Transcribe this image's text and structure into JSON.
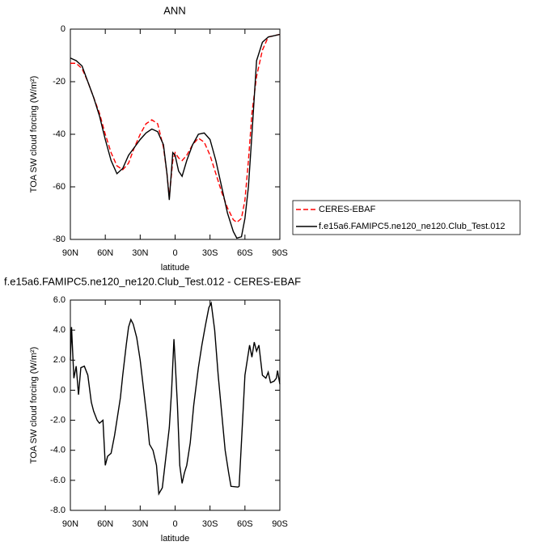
{
  "chart_data": [
    {
      "type": "line",
      "title": "ANN",
      "xlabel": "latitude",
      "ylabel": "TOA SW cloud forcing (W/m²)",
      "x": [
        90,
        85,
        80,
        75,
        70,
        65,
        60,
        55,
        50,
        45,
        40,
        35,
        30,
        25,
        20,
        15,
        10,
        7,
        5,
        2,
        0,
        -3,
        -6,
        -10,
        -15,
        -20,
        -25,
        -30,
        -35,
        -40,
        -45,
        -50,
        -53,
        -57,
        -60,
        -63,
        -66,
        -70,
        -75,
        -80,
        -85,
        -90
      ],
      "series": [
        {
          "name": "CERES-EBAF",
          "color": "#ff0000",
          "linestyle": "dashed",
          "values": [
            -13,
            -13,
            -15,
            -20,
            -26,
            -32,
            -40,
            -47,
            -52,
            -53.5,
            -51,
            -45,
            -40,
            -36,
            -34.5,
            -36,
            -45,
            -55,
            -64,
            -50,
            -47,
            -49,
            -50,
            -48,
            -44,
            -41.5,
            -43,
            -48,
            -55,
            -62,
            -68,
            -72.5,
            -73.5,
            -72,
            -65,
            -50,
            -32,
            -18,
            -8,
            -3,
            -2.5,
            -2
          ]
        },
        {
          "name": "f.e15a6.FAMIPC5.ne120_ne120.Club_Test.012",
          "color": "#000000",
          "linestyle": "solid",
          "values": [
            -11,
            -12,
            -14,
            -20,
            -26,
            -33,
            -42,
            -50,
            -55,
            -53,
            -48,
            -45,
            -42,
            -39.5,
            -38,
            -39,
            -44,
            -55,
            -65,
            -47,
            -48,
            -54,
            -56,
            -50,
            -44,
            -40,
            -39.5,
            -42,
            -50,
            -60,
            -70,
            -77,
            -79.5,
            -79,
            -72,
            -60,
            -40,
            -12,
            -5,
            -3,
            -2.5,
            -2
          ]
        }
      ],
      "xlim": [
        90,
        -90
      ],
      "xticks": [
        {
          "value": 90,
          "label": "90N"
        },
        {
          "value": 60,
          "label": "60N"
        },
        {
          "value": 30,
          "label": "30N"
        },
        0,
        {
          "value": -30,
          "label": "30S"
        },
        {
          "value": -60,
          "label": "60S"
        },
        {
          "value": -90,
          "label": "90S"
        }
      ],
      "ylim": [
        -80,
        0
      ],
      "yticks": [
        0,
        -20,
        -40,
        -60,
        -80
      ],
      "legend": "outside-right"
    },
    {
      "type": "line",
      "title": "f.e15a6.FAMIPC5.ne120_ne120.Club_Test.012 - CERES-EBAF",
      "xlabel": "latitude",
      "ylabel": "TOA SW cloud forcing (W/m²)",
      "x": [
        90,
        89,
        87,
        85,
        83,
        81,
        78,
        75,
        72,
        70,
        67,
        65,
        62,
        61,
        60,
        58,
        55,
        52,
        50,
        47,
        45,
        42,
        40,
        38,
        36,
        33,
        30,
        27,
        24,
        22,
        19,
        16,
        14,
        11,
        8,
        5,
        3,
        1,
        0,
        -2,
        -4,
        -6,
        -8,
        -10,
        -13,
        -16,
        -20,
        -23,
        -26,
        -29,
        -31,
        -34,
        -37,
        -40,
        -43,
        -46,
        -48,
        -54,
        -55,
        -58,
        -60,
        -62,
        -64,
        -66,
        -68,
        -70,
        -72,
        -75,
        -78,
        -80,
        -82,
        -85,
        -87,
        -88,
        -90
      ],
      "series": [
        {
          "name": "f.e15a6.FAMIPC5.ne120_ne120.Club_Test.012 - CERES-EBAF",
          "color": "#000000",
          "linestyle": "solid",
          "values": [
            2.0,
            4.2,
            0.8,
            1.6,
            -0.3,
            1.5,
            1.6,
            1.0,
            -0.8,
            -1.4,
            -2.0,
            -2.2,
            -2.0,
            -3.5,
            -5.0,
            -4.4,
            -4.2,
            -3.0,
            -2.0,
            -0.5,
            1.0,
            3.0,
            4.2,
            4.7,
            4.4,
            3.5,
            2.0,
            0,
            -2,
            -3.6,
            -4.0,
            -5.0,
            -6.9,
            -6.5,
            -4.5,
            -2.5,
            0,
            3.4,
            2.0,
            -1,
            -5,
            -6.2,
            -5.5,
            -5.0,
            -3.5,
            -1,
            1.5,
            3.0,
            4.3,
            5.5,
            5.8,
            4.0,
            1.0,
            -1.5,
            -4,
            -5.5,
            -6.4,
            -6.45,
            -6.4,
            -2,
            1.0,
            2.0,
            3.0,
            2.2,
            3.2,
            2.6,
            3.0,
            1.0,
            0.8,
            1.2,
            0.5,
            0.6,
            0.8,
            1.3,
            0.4
          ]
        }
      ],
      "xlim": [
        90,
        -90
      ],
      "xticks": [
        {
          "value": 90,
          "label": "90N"
        },
        {
          "value": 60,
          "label": "60N"
        },
        {
          "value": 30,
          "label": "30N"
        },
        0,
        {
          "value": -30,
          "label": "30S"
        },
        {
          "value": -60,
          "label": "60S"
        },
        {
          "value": -90,
          "label": "90S"
        }
      ],
      "ylim": [
        -8,
        6
      ],
      "yticks": [
        {
          "value": 6,
          "label": "6.0"
        },
        {
          "value": 4,
          "label": "4.0"
        },
        {
          "value": 2,
          "label": "2.0"
        },
        {
          "value": 0,
          "label": "0.0"
        },
        {
          "value": -2,
          "label": "-2.0"
        },
        {
          "value": -4,
          "label": "-4.0"
        },
        {
          "value": -6,
          "label": "-6.0"
        },
        {
          "value": -8,
          "label": "-8.0"
        }
      ]
    }
  ]
}
